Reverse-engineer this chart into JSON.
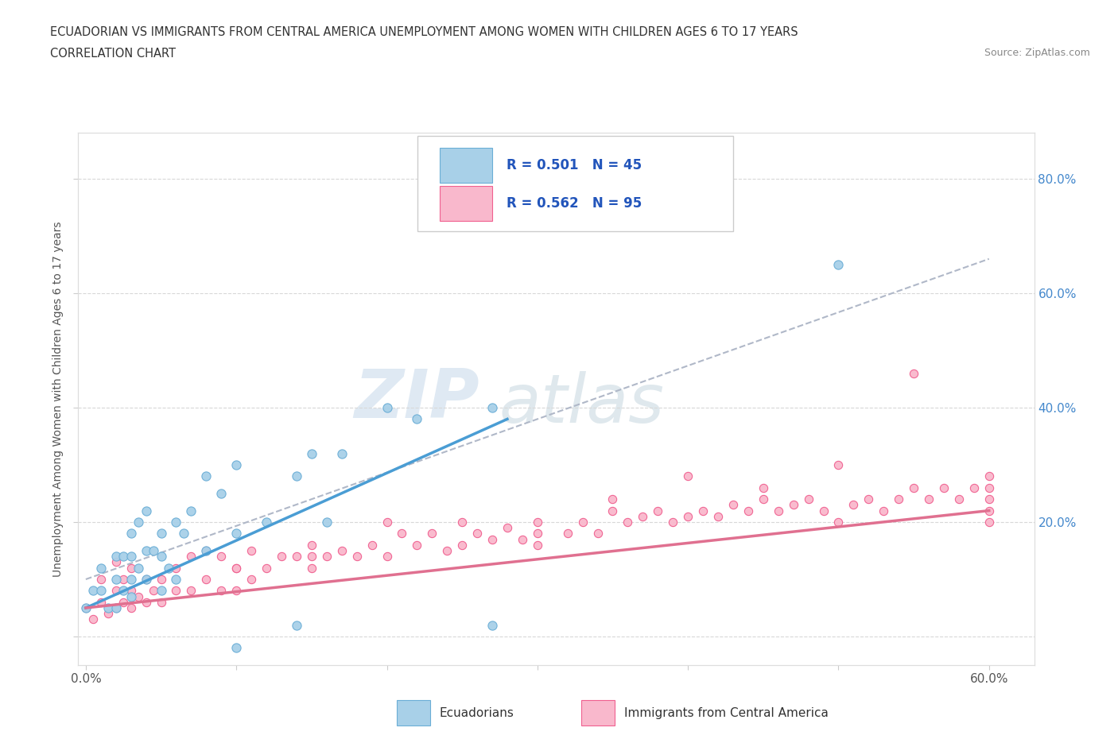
{
  "title_line1": "ECUADORIAN VS IMMIGRANTS FROM CENTRAL AMERICA UNEMPLOYMENT AMONG WOMEN WITH CHILDREN AGES 6 TO 17 YEARS",
  "title_line2": "CORRELATION CHART",
  "source": "Source: ZipAtlas.com",
  "ylabel": "Unemployment Among Women with Children Ages 6 to 17 years",
  "xlim": [
    -0.005,
    0.63
  ],
  "ylim": [
    -0.05,
    0.88
  ],
  "xtick_positions": [
    0.0,
    0.1,
    0.2,
    0.3,
    0.4,
    0.5,
    0.6
  ],
  "xticklabels": [
    "0.0%",
    "",
    "",
    "",
    "",
    "",
    "60.0%"
  ],
  "ytick_positions": [
    0.0,
    0.2,
    0.4,
    0.6,
    0.8
  ],
  "ytick_labels_right": [
    "",
    "20.0%",
    "40.0%",
    "60.0%",
    "80.0%"
  ],
  "legend_r1": "R = 0.501",
  "legend_n1": "N = 45",
  "legend_r2": "R = 0.562",
  "legend_n2": "N = 95",
  "color_blue_fill": "#a8d0e8",
  "color_blue_edge": "#6baed6",
  "color_pink_fill": "#f9b8cc",
  "color_pink_edge": "#f06090",
  "color_blue_line": "#4a9dd4",
  "color_pink_line": "#e07090",
  "color_dash": "#b0b8c8",
  "background_color": "#ffffff",
  "grid_color": "#d8d8d8",
  "blue_x": [
    0.0,
    0.005,
    0.01,
    0.01,
    0.015,
    0.02,
    0.02,
    0.02,
    0.025,
    0.025,
    0.03,
    0.03,
    0.03,
    0.03,
    0.035,
    0.035,
    0.04,
    0.04,
    0.04,
    0.045,
    0.05,
    0.05,
    0.05,
    0.055,
    0.06,
    0.06,
    0.065,
    0.07,
    0.08,
    0.08,
    0.09,
    0.1,
    0.1,
    0.12,
    0.14,
    0.15,
    0.16,
    0.17,
    0.2,
    0.22,
    0.1,
    0.14,
    0.27,
    0.5,
    0.27
  ],
  "blue_y": [
    0.05,
    0.08,
    0.08,
    0.12,
    0.05,
    0.05,
    0.1,
    0.14,
    0.08,
    0.14,
    0.07,
    0.1,
    0.14,
    0.18,
    0.12,
    0.2,
    0.1,
    0.15,
    0.22,
    0.15,
    0.08,
    0.14,
    0.18,
    0.12,
    0.1,
    0.2,
    0.18,
    0.22,
    0.15,
    0.28,
    0.25,
    0.18,
    0.3,
    0.2,
    0.28,
    0.32,
    0.2,
    0.32,
    0.4,
    0.38,
    -0.02,
    0.02,
    0.4,
    0.65,
    0.02
  ],
  "pink_x": [
    0.0,
    0.005,
    0.01,
    0.01,
    0.015,
    0.02,
    0.02,
    0.02,
    0.025,
    0.025,
    0.03,
    0.03,
    0.03,
    0.035,
    0.04,
    0.04,
    0.045,
    0.05,
    0.05,
    0.06,
    0.06,
    0.07,
    0.07,
    0.08,
    0.08,
    0.09,
    0.09,
    0.1,
    0.1,
    0.11,
    0.11,
    0.12,
    0.13,
    0.14,
    0.15,
    0.15,
    0.16,
    0.17,
    0.18,
    0.19,
    0.2,
    0.21,
    0.22,
    0.23,
    0.24,
    0.25,
    0.26,
    0.27,
    0.28,
    0.29,
    0.3,
    0.3,
    0.32,
    0.33,
    0.34,
    0.35,
    0.36,
    0.37,
    0.38,
    0.39,
    0.4,
    0.41,
    0.42,
    0.43,
    0.44,
    0.45,
    0.46,
    0.47,
    0.48,
    0.49,
    0.5,
    0.51,
    0.52,
    0.53,
    0.54,
    0.55,
    0.56,
    0.57,
    0.58,
    0.59,
    0.6,
    0.6,
    0.6,
    0.6,
    0.6,
    0.45,
    0.3,
    0.2,
    0.1,
    0.5,
    0.25,
    0.4,
    0.55,
    0.35,
    0.15
  ],
  "pink_y": [
    0.05,
    0.03,
    0.06,
    0.1,
    0.04,
    0.05,
    0.08,
    0.13,
    0.06,
    0.1,
    0.05,
    0.08,
    0.12,
    0.07,
    0.06,
    0.1,
    0.08,
    0.06,
    0.1,
    0.08,
    0.12,
    0.08,
    0.14,
    0.1,
    0.15,
    0.08,
    0.14,
    0.08,
    0.12,
    0.1,
    0.15,
    0.12,
    0.14,
    0.14,
    0.12,
    0.16,
    0.14,
    0.15,
    0.14,
    0.16,
    0.14,
    0.18,
    0.16,
    0.18,
    0.15,
    0.16,
    0.18,
    0.17,
    0.19,
    0.17,
    0.16,
    0.2,
    0.18,
    0.2,
    0.18,
    0.22,
    0.2,
    0.21,
    0.22,
    0.2,
    0.21,
    0.22,
    0.21,
    0.23,
    0.22,
    0.24,
    0.22,
    0.23,
    0.24,
    0.22,
    0.2,
    0.23,
    0.24,
    0.22,
    0.24,
    0.26,
    0.24,
    0.26,
    0.24,
    0.26,
    0.22,
    0.24,
    0.26,
    0.28,
    0.2,
    0.26,
    0.18,
    0.2,
    0.12,
    0.3,
    0.2,
    0.28,
    0.46,
    0.24,
    0.14
  ],
  "blue_line_x": [
    0.0,
    0.28
  ],
  "blue_line_y": [
    0.05,
    0.38
  ],
  "pink_line_x": [
    0.0,
    0.6
  ],
  "pink_line_y": [
    0.05,
    0.22
  ],
  "dash_line_x": [
    0.0,
    0.6
  ],
  "dash_line_y": [
    0.1,
    0.66
  ],
  "watermark_zip": "ZIP",
  "watermark_atlas": "atlas"
}
